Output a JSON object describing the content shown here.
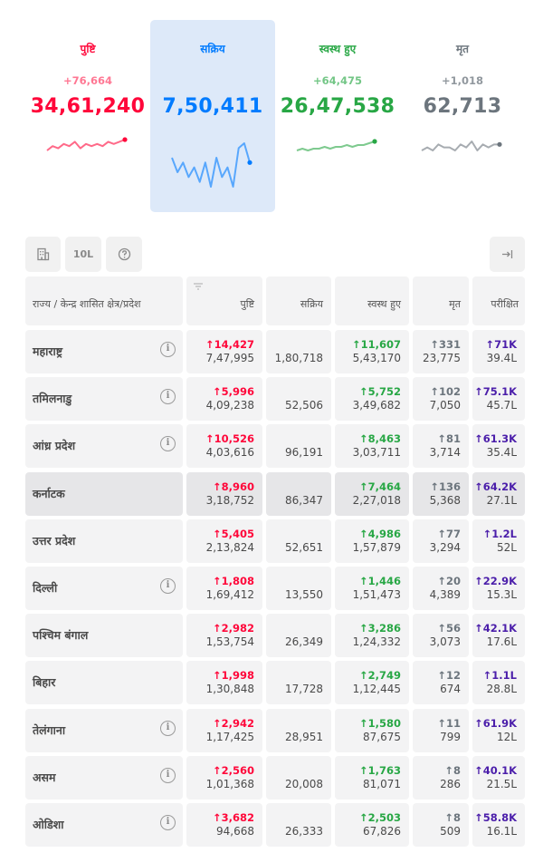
{
  "summary": {
    "confirmed": {
      "label": "पुष्टि",
      "delta": "+76,664",
      "total": "34,61,240",
      "color": "#ff073a",
      "spark": [
        3,
        5,
        4,
        6,
        5,
        7,
        4,
        6,
        5,
        6,
        5,
        7,
        6,
        7,
        8
      ]
    },
    "active": {
      "label": "सक्रिय",
      "delta": "",
      "total": "7,50,411",
      "color": "#007bff",
      "spark": [
        6,
        3,
        5,
        2,
        4,
        1,
        5,
        0,
        6,
        2,
        4,
        0,
        8,
        9,
        5
      ]
    },
    "recovered": {
      "label": "स्वस्थ हुए",
      "delta": "+64,475",
      "total": "26,47,538",
      "color": "#28a745",
      "spark": [
        3,
        4,
        3,
        4,
        4,
        5,
        4,
        5,
        5,
        6,
        5,
        6,
        6,
        7,
        8
      ]
    },
    "deceased": {
      "label": "मृत",
      "delta": "+1,018",
      "total": "62,713",
      "color": "#6c757d",
      "spark": [
        4,
        5,
        4,
        6,
        5,
        5,
        4,
        6,
        5,
        7,
        4,
        6,
        5,
        6,
        6
      ]
    }
  },
  "toolbar": {
    "building_icon": "building-icon",
    "scale_label": "10L",
    "help_icon": "question-circle-icon",
    "expand_icon": "arrow-right-bar-icon"
  },
  "table": {
    "columns": [
      "राज्य / केन्द्र शासित क्षेत्र/प्रदेश",
      "पुष्टि",
      "सक्रिय",
      "स्वस्थ हुए",
      "मृत",
      "परीक्षित"
    ],
    "rows": [
      {
        "state": "महाराष्ट्र",
        "info": true,
        "conf_d": "↑14,427",
        "conf": "7,47,995",
        "active": "1,80,718",
        "rec_d": "↑11,607",
        "rec": "5,43,170",
        "dec_d": "↑331",
        "dec": "23,775",
        "test_d": "↑71K",
        "test": "39.4L"
      },
      {
        "state": "तमिलनाडु",
        "info": true,
        "conf_d": "↑5,996",
        "conf": "4,09,238",
        "active": "52,506",
        "rec_d": "↑5,752",
        "rec": "3,49,682",
        "dec_d": "↑102",
        "dec": "7,050",
        "test_d": "↑75.1K",
        "test": "45.7L"
      },
      {
        "state": "आंध्र प्रदेश",
        "info": true,
        "conf_d": "↑10,526",
        "conf": "4,03,616",
        "active": "96,191",
        "rec_d": "↑8,463",
        "rec": "3,03,711",
        "dec_d": "↑81",
        "dec": "3,714",
        "test_d": "↑61.3K",
        "test": "35.4L"
      },
      {
        "state": "कर्नाटक",
        "info": false,
        "conf_d": "↑8,960",
        "conf": "3,18,752",
        "active": "86,347",
        "rec_d": "↑7,464",
        "rec": "2,27,018",
        "dec_d": "↑136",
        "dec": "5,368",
        "test_d": "↑64.2K",
        "test": "27.1L"
      },
      {
        "state": "उत्तर प्रदेश",
        "info": false,
        "conf_d": "↑5,405",
        "conf": "2,13,824",
        "active": "52,651",
        "rec_d": "↑4,986",
        "rec": "1,57,879",
        "dec_d": "↑77",
        "dec": "3,294",
        "test_d": "↑1.2L",
        "test": "52L"
      },
      {
        "state": "दिल्ली",
        "info": true,
        "conf_d": "↑1,808",
        "conf": "1,69,412",
        "active": "13,550",
        "rec_d": "↑1,446",
        "rec": "1,51,473",
        "dec_d": "↑20",
        "dec": "4,389",
        "test_d": "↑22.9K",
        "test": "15.3L"
      },
      {
        "state": "पश्चिम बंगाल",
        "info": false,
        "conf_d": "↑2,982",
        "conf": "1,53,754",
        "active": "26,349",
        "rec_d": "↑3,286",
        "rec": "1,24,332",
        "dec_d": "↑56",
        "dec": "3,073",
        "test_d": "↑42.1K",
        "test": "17.6L"
      },
      {
        "state": "बिहार",
        "info": false,
        "conf_d": "↑1,998",
        "conf": "1,30,848",
        "active": "17,728",
        "rec_d": "↑2,749",
        "rec": "1,12,445",
        "dec_d": "↑12",
        "dec": "674",
        "test_d": "↑1.1L",
        "test": "28.8L"
      },
      {
        "state": "तेलंगाना",
        "info": true,
        "conf_d": "↑2,942",
        "conf": "1,17,425",
        "active": "28,951",
        "rec_d": "↑1,580",
        "rec": "87,675",
        "dec_d": "↑11",
        "dec": "799",
        "test_d": "↑61.9K",
        "test": "12L"
      },
      {
        "state": "असम",
        "info": true,
        "conf_d": "↑2,560",
        "conf": "1,01,368",
        "active": "20,008",
        "rec_d": "↑1,763",
        "rec": "81,071",
        "dec_d": "↑8",
        "dec": "286",
        "test_d": "↑40.1K",
        "test": "21.5L"
      },
      {
        "state": "ओडिशा",
        "info": true,
        "conf_d": "↑3,682",
        "conf": "94,668",
        "active": "26,333",
        "rec_d": "↑2,503",
        "rec": "67,826",
        "dec_d": "↑8",
        "dec": "509",
        "test_d": "↑58.8K",
        "test": "16.1L"
      }
    ]
  }
}
